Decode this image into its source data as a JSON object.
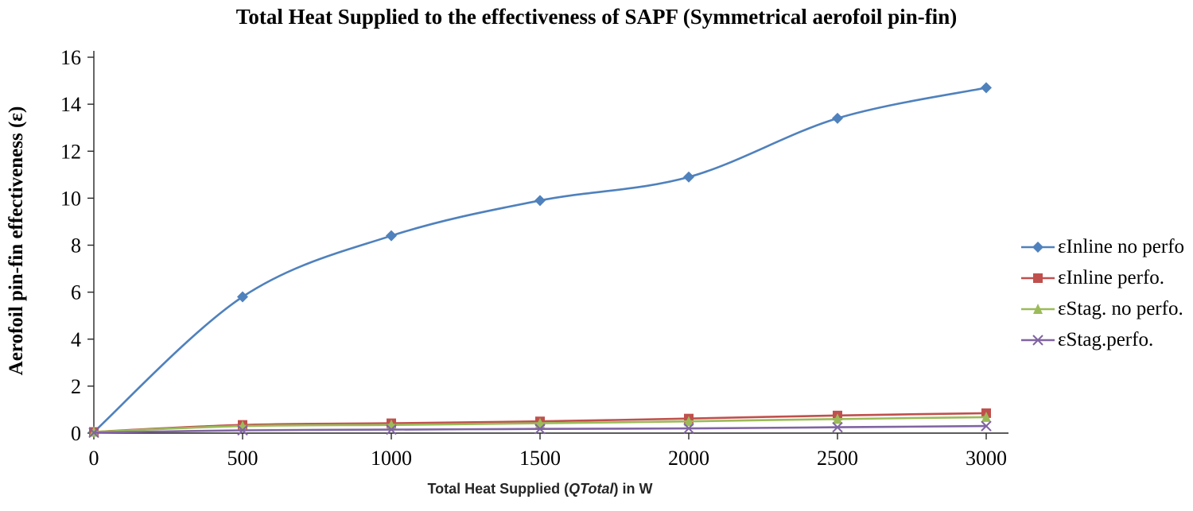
{
  "chart_data": {
    "type": "line",
    "title": "Total Heat Supplied to the effectiveness of SAPF (Symmetrical aerofoil pin-fin)",
    "xlabel": {
      "prefix": "Total Heat Supplied (",
      "italic": "QTotal",
      "suffix": ") in W"
    },
    "ylabel": "Aerofoil pin-fin effectiveness (ε)",
    "x": [
      0,
      500,
      1000,
      1500,
      2000,
      2500,
      3000
    ],
    "xticks": [
      "0",
      "500",
      "1000",
      "1500",
      "2000",
      "2500",
      "3000"
    ],
    "xlim": [
      0,
      3000
    ],
    "ylim": [
      0,
      16
    ],
    "ytick_step": 2,
    "grid": false,
    "legend_position": "right",
    "axis_color": "#262626",
    "series": [
      {
        "name": "εInline no perfo",
        "color": "#4F81BD",
        "marker": "diamond",
        "values": [
          0.05,
          5.8,
          8.4,
          9.9,
          10.9,
          13.4,
          14.7
        ]
      },
      {
        "name": "εInline perfo.",
        "color": "#C0504D",
        "marker": "square",
        "values": [
          0.05,
          0.35,
          0.42,
          0.5,
          0.62,
          0.75,
          0.85
        ]
      },
      {
        "name": "εStag. no perfo.",
        "color": "#9BBB59",
        "marker": "triangle",
        "values": [
          0.05,
          0.3,
          0.35,
          0.42,
          0.5,
          0.6,
          0.68
        ]
      },
      {
        "name": "εStag.perfo.",
        "color": "#8064A2",
        "marker": "x",
        "values": [
          0.02,
          0.12,
          0.15,
          0.18,
          0.2,
          0.25,
          0.3
        ]
      }
    ]
  }
}
